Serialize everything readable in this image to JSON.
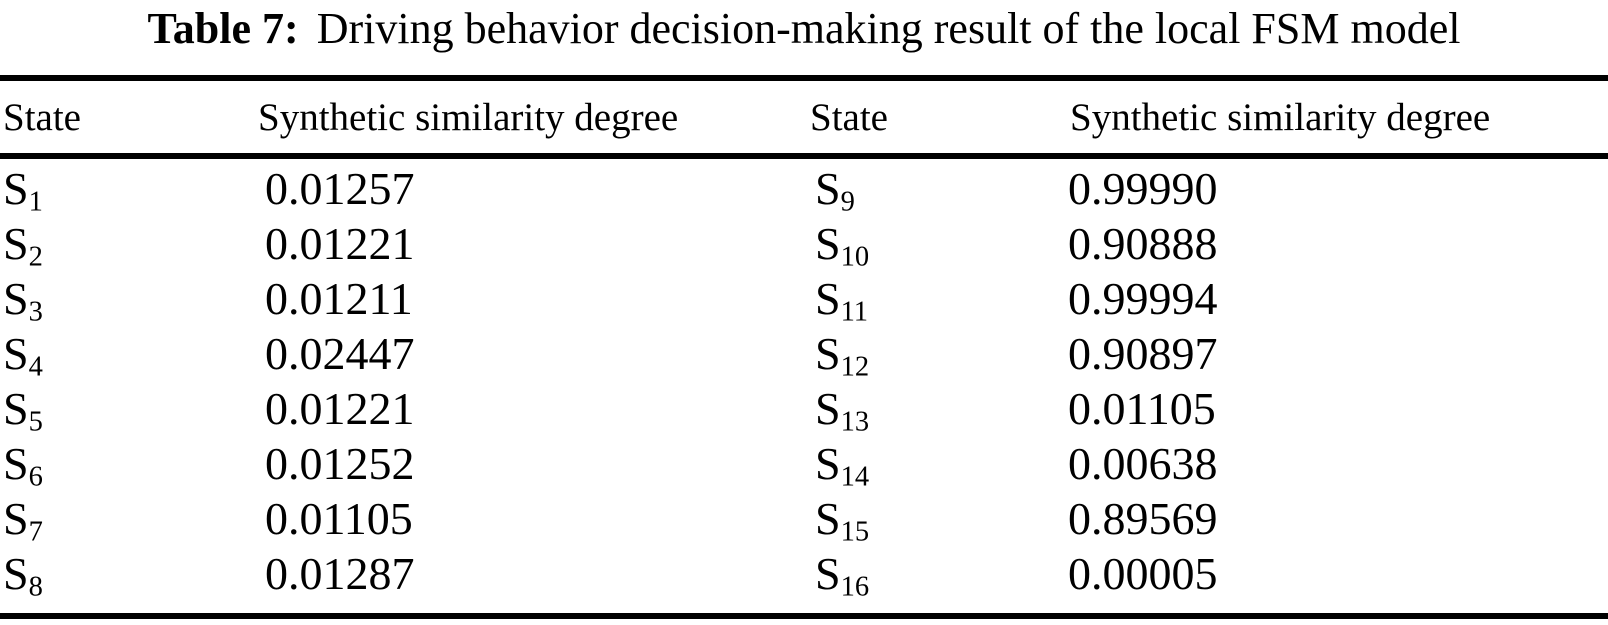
{
  "caption": {
    "label": "Table 7:",
    "text": "Driving behavior decision-making result of the local FSM model"
  },
  "headers": [
    "State",
    "Synthetic similarity degree",
    "State",
    "Synthetic similarity degree"
  ],
  "rows": [
    {
      "left": {
        "base": "S",
        "sub": "1"
      },
      "left_value": "0.01257",
      "right": {
        "base": "S",
        "sub": "9"
      },
      "right_value": "0.99990"
    },
    {
      "left": {
        "base": "S",
        "sub": "2"
      },
      "left_value": "0.01221",
      "right": {
        "base": "S",
        "sub": "10"
      },
      "right_value": "0.90888"
    },
    {
      "left": {
        "base": "S",
        "sub": "3"
      },
      "left_value": "0.01211",
      "right": {
        "base": "S",
        "sub": "11"
      },
      "right_value": "0.99994"
    },
    {
      "left": {
        "base": "S",
        "sub": "4"
      },
      "left_value": "0.02447",
      "right": {
        "base": "S",
        "sub": "12"
      },
      "right_value": "0.90897"
    },
    {
      "left": {
        "base": "S",
        "sub": "5"
      },
      "left_value": "0.01221",
      "right": {
        "base": "S",
        "sub": "13"
      },
      "right_value": "0.01105"
    },
    {
      "left": {
        "base": "S",
        "sub": "6"
      },
      "left_value": "0.01252",
      "right": {
        "base": "S",
        "sub": "14"
      },
      "right_value": "0.00638"
    },
    {
      "left": {
        "base": "S",
        "sub": "7"
      },
      "left_value": "0.01105",
      "right": {
        "base": "S",
        "sub": "15"
      },
      "right_value": "0.89569"
    },
    {
      "left": {
        "base": "S",
        "sub": "8"
      },
      "left_value": "0.01287",
      "right": {
        "base": "S",
        "sub": "16"
      },
      "right_value": "0.00005"
    }
  ],
  "colors": {
    "background": "#ffffff",
    "text": "#000000",
    "rule": "#000000"
  }
}
